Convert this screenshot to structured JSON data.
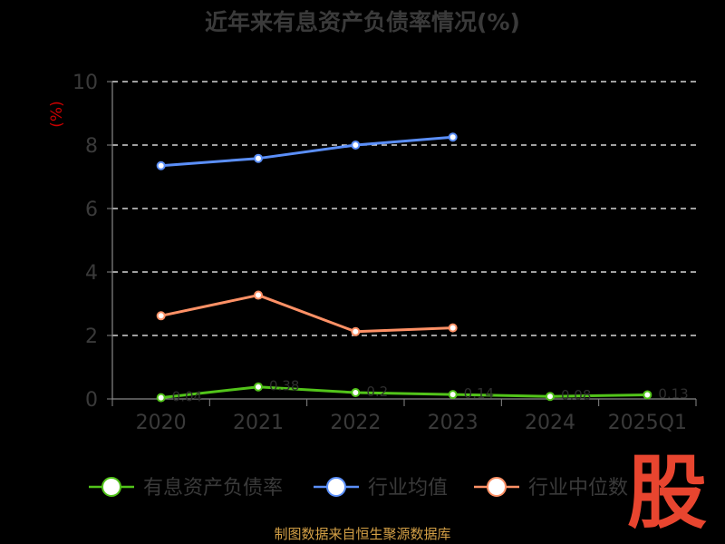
{
  "chart_data": {
    "type": "line",
    "title": "近年来有息资产负债率情况(%)",
    "ylabel": "(%)",
    "categories": [
      "2020",
      "2021",
      "2022",
      "2023",
      "2024",
      "2025Q1"
    ],
    "ylim": [
      0,
      10
    ],
    "yticks": [
      "0",
      "2",
      "4",
      "6",
      "8",
      "10"
    ],
    "grid": true,
    "legend_position": "bottom",
    "series": [
      {
        "name": "有息资产负债率",
        "color": "#52c41a",
        "values": [
          0.04,
          0.38,
          0.2,
          0.14,
          0.08,
          0.13
        ],
        "labels": [
          "0.04",
          "0.38",
          "0.2",
          "0.14",
          "0.08",
          "0.13"
        ]
      },
      {
        "name": "行业均值",
        "color": "#5b8ff9",
        "values": [
          7.35,
          7.58,
          8.0,
          8.25,
          null,
          null
        ]
      },
      {
        "name": "行业中位数",
        "color": "#ff9166",
        "values": [
          2.62,
          3.27,
          2.12,
          2.24,
          null,
          null
        ]
      }
    ]
  },
  "stamp_text": "股",
  "source_text": "制图数据来自恒生聚源数据库"
}
